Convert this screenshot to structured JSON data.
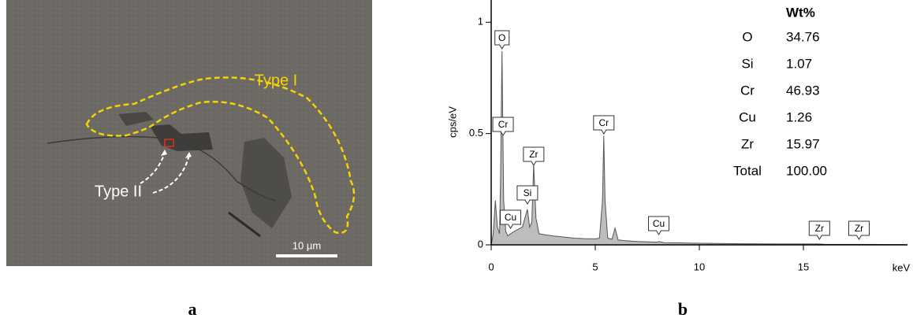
{
  "image": {
    "region_1": "Type I",
    "region_2": "Type II",
    "scale_bar": "10 µm"
  },
  "panel_labels": [
    "a",
    "b"
  ],
  "chart_data": {
    "type": "area",
    "y_label": "cps/eV",
    "x_label": "keV",
    "color": "#bdbdbd",
    "x": [
      0,
      0.1,
      0.2,
      0.3,
      0.4,
      0.45,
      0.52,
      0.6,
      0.7,
      0.8,
      0.93,
      1.1,
      1.3,
      1.5,
      1.74,
      1.85,
      1.95,
      2.04,
      2.15,
      2.3,
      2.6,
      3,
      3.5,
      4,
      4.5,
      5,
      5.2,
      5.35,
      5.41,
      5.47,
      5.6,
      5.8,
      5.95,
      6.1,
      6.5,
      7,
      8,
      8.05,
      8.3,
      9,
      10,
      12,
      14,
      15.77,
      16,
      18,
      20
    ],
    "values": [
      0,
      0.05,
      0.2,
      0.08,
      0.05,
      0.3,
      0.87,
      0.2,
      0.06,
      0.04,
      0.05,
      0.06,
      0.07,
      0.08,
      0.16,
      0.08,
      0.1,
      0.36,
      0.12,
      0.05,
      0.045,
      0.04,
      0.035,
      0.03,
      0.028,
      0.027,
      0.03,
      0.2,
      0.49,
      0.2,
      0.03,
      0.025,
      0.075,
      0.022,
      0.018,
      0.015,
      0.012,
      0.015,
      0.01,
      0.009,
      0.007,
      0.005,
      0.004,
      0.004,
      0.003,
      0.002,
      0.001
    ],
    "xlim": [
      0,
      20
    ],
    "ylim": [
      0,
      1.1
    ],
    "xticks": [
      0,
      5,
      10,
      15
    ],
    "yticks": [
      0,
      0.5,
      1
    ],
    "peak_labels": [
      {
        "text": "O",
        "x": 0.52
      },
      {
        "text": "Cr",
        "x": 0.57
      },
      {
        "text": "Zr",
        "x": 2.04
      },
      {
        "text": "Si",
        "x": 1.74
      },
      {
        "text": "Cu",
        "x": 0.93
      },
      {
        "text": "Cr",
        "x": 5.41
      },
      {
        "text": "Cu",
        "x": 8.05
      },
      {
        "text": "Zr",
        "x": 15.77
      },
      {
        "text": "Zr",
        "x": 17.67
      }
    ]
  },
  "table": {
    "header": "Wt%",
    "rows": [
      [
        "O",
        "34.76"
      ],
      [
        "Si",
        "1.07"
      ],
      [
        "Cr",
        "46.93"
      ],
      [
        "Cu",
        "1.26"
      ],
      [
        "Zr",
        "15.97"
      ],
      [
        "Total",
        "100.00"
      ]
    ]
  }
}
